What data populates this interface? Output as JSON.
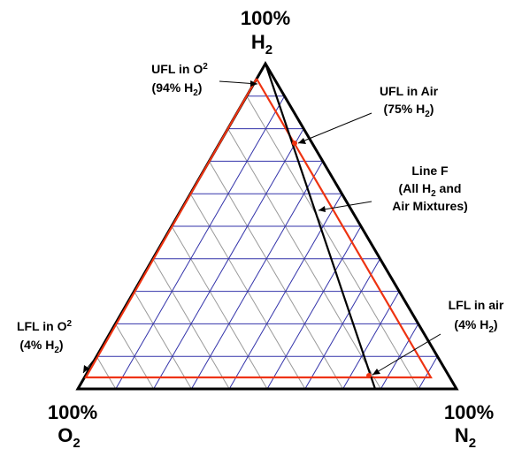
{
  "colors": {
    "triangle": "#000000",
    "grid_blue": "#3333aa",
    "grid_gray": "#999999",
    "flammability_boundary": "#ee3311",
    "line_f": "#000000",
    "points": "#ee3311"
  },
  "ternary": {
    "grid_divisions": 10,
    "top_vertex": {
      "percent": "100%",
      "element": "H",
      "sub": "2"
    },
    "left_vertex": {
      "percent": "100%",
      "element": "O",
      "sub": "2"
    },
    "right_vertex": {
      "percent": "100%",
      "element": "N",
      "sub": "2"
    }
  },
  "annotations": {
    "ufl_o2": {
      "line1_pre": "UFL in O",
      "line1_sub": "2",
      "line2_pre": "(94% H",
      "line2_sub": "2",
      "line2_post": ")"
    },
    "ufl_air": {
      "line1": "UFL in Air",
      "line2_pre": "(75% H",
      "line2_sub": "2",
      "line2_post": ")"
    },
    "line_f": {
      "line1": "Line F",
      "line2_pre": "(All H",
      "line2_sub": "2",
      "line2_post": " and",
      "line3": "Air Mixtures)"
    },
    "lfl_air": {
      "line1": "LFL in air",
      "line2_pre": "(4% H",
      "line2_sub": "2",
      "line2_post": ")"
    },
    "lfl_o2": {
      "line1_pre": "LFL in O",
      "line1_sub": "2",
      "line2_pre": "(4% H",
      "line2_sub": "2",
      "line2_post": ")"
    }
  }
}
